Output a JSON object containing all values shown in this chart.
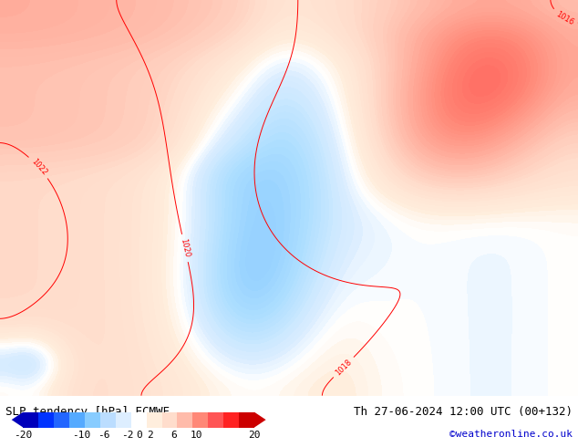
{
  "title_left": "SLP tendency [hPa] ECMWF",
  "title_right": "Th 27-06-2024 12:00 UTC (00+132)",
  "credit": "©weatheronline.co.uk",
  "colorbar_values": [
    -20,
    -10,
    -6,
    -2,
    0,
    2,
    6,
    10,
    20
  ],
  "bg_color": "#ffffff",
  "figsize": [
    6.34,
    4.9
  ],
  "dpi": 100,
  "colorbar_label_fontsize": 8,
  "title_fontsize": 9,
  "credit_fontsize": 8,
  "credit_color": "#0000cc",
  "colormap_nodes": [
    [
      0.0,
      "#0000bb"
    ],
    [
      0.1,
      "#0033ff"
    ],
    [
      0.25,
      "#55aaff"
    ],
    [
      0.4,
      "#aaddff"
    ],
    [
      0.475,
      "#ddeeff"
    ],
    [
      0.5,
      "#ffffff"
    ],
    [
      0.525,
      "#ffeedd"
    ],
    [
      0.58,
      "#ffddcc"
    ],
    [
      0.65,
      "#ffbbaa"
    ],
    [
      0.75,
      "#ff8877"
    ],
    [
      0.875,
      "#ff4444"
    ],
    [
      1.0,
      "#cc0000"
    ]
  ]
}
